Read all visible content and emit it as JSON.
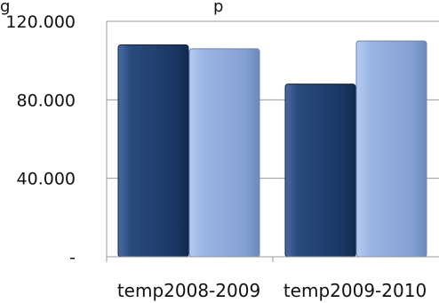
{
  "chart_data": {
    "type": "bar",
    "categories": [
      "temp2008-2009",
      "temp2009-2010"
    ],
    "series": [
      {
        "values": [
          108000,
          88000
        ],
        "color": "#1f3a68"
      },
      {
        "values": [
          106000,
          110000
        ],
        "color": "#8fa9d8"
      }
    ],
    "ylim": [
      0,
      120000
    ],
    "yticks": [
      {
        "value": 0,
        "label": "-"
      },
      {
        "value": 40000,
        "label": "40.000"
      },
      {
        "value": 80000,
        "label": "80.000"
      },
      {
        "value": 120000,
        "label": "120.000"
      }
    ],
    "grid": true,
    "title_fragment": "g",
    "title_fragment_2": "p"
  }
}
